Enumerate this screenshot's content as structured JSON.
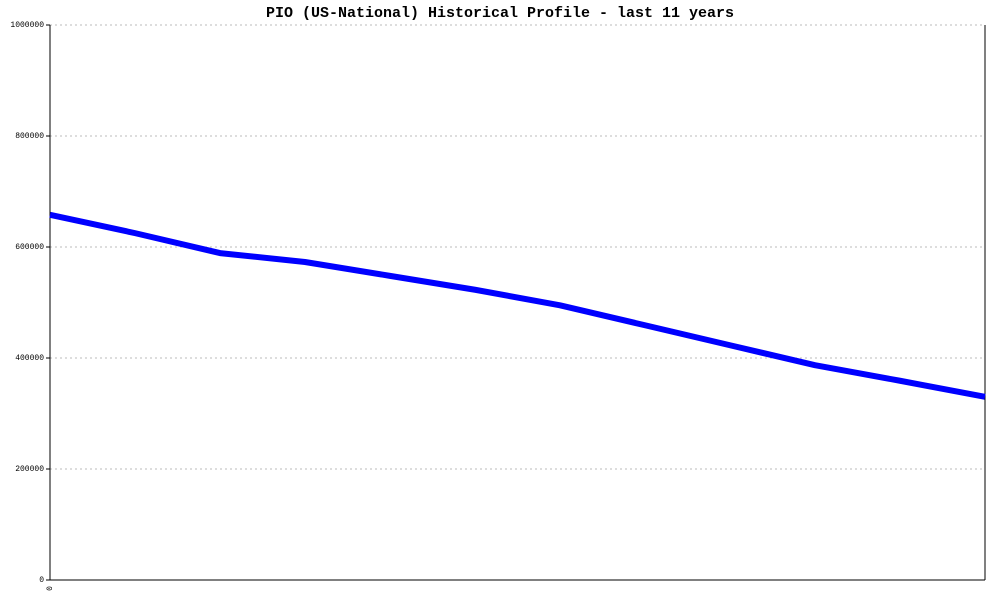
{
  "chart_data": {
    "type": "line",
    "title": "PIO (US-National) Historical Profile - last 11 years",
    "categories": [
      "0",
      null,
      null,
      null,
      null,
      null,
      null,
      null,
      null,
      null,
      null,
      null
    ],
    "series": [
      {
        "color": "#0000ff",
        "values": [
          658000,
          625000,
          589000,
          573000,
          548000,
          523000,
          495000,
          459000,
          423000,
          387000,
          359000,
          330000
        ]
      }
    ],
    "ylim": [
      0,
      1000000
    ],
    "yticks": [
      0,
      200000,
      400000,
      600000,
      800000,
      1000000
    ],
    "grid": true
  }
}
